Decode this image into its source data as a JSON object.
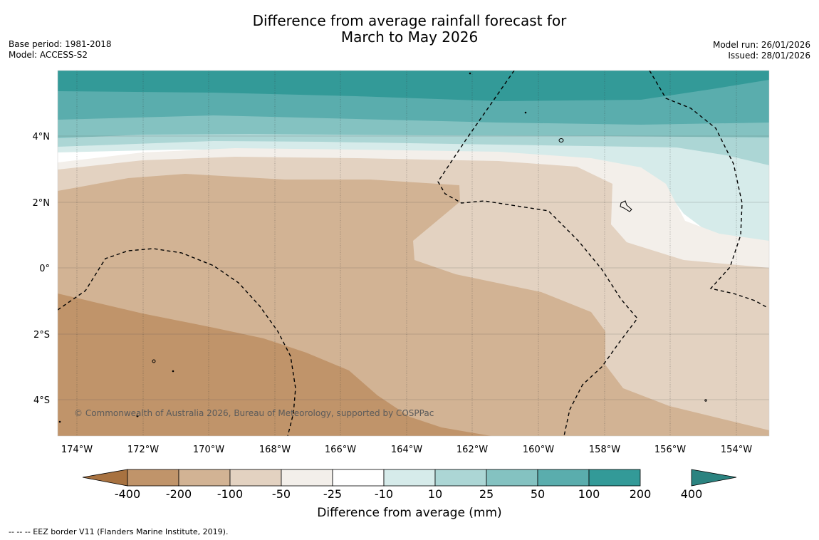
{
  "title": {
    "line1": "Difference from average rainfall forecast for",
    "line2": "March to May 2026"
  },
  "meta_left": {
    "base_period": "Base period: 1981-2018",
    "model": "Model: ACCESS-S2"
  },
  "meta_right": {
    "model_run": "Model run: 26/01/2026",
    "issued": "Issued: 28/01/2026"
  },
  "map": {
    "lat_labels": [
      "4°N",
      "2°N",
      "0°",
      "2°S",
      "4°S"
    ],
    "lon_labels": [
      "174°W",
      "172°W",
      "170°W",
      "168°W",
      "166°W",
      "164°W",
      "162°W",
      "160°W",
      "158°W",
      "156°W",
      "154°W"
    ],
    "copyright": "© Commonwealth of Australia 2026, Bureau of Meteorology, supported by COSPPac"
  },
  "colorbar": {
    "title": "Difference from average (mm)",
    "ticks": [
      "-400",
      "-200",
      "-100",
      "-50",
      "-25",
      "-10",
      "10",
      "25",
      "50",
      "100",
      "200",
      "400"
    ],
    "colors": [
      "#a87240",
      "#c0946a",
      "#d2b394",
      "#e3d2c1",
      "#f3efea",
      "#ffffff",
      "#d6ebea",
      "#acd6d5",
      "#84c2c1",
      "#5aadad",
      "#339a98",
      "#2b8380"
    ]
  },
  "footer": {
    "legend": "--  --  -- EEZ border V11 (Flanders Marine Institute, 2019)."
  }
}
